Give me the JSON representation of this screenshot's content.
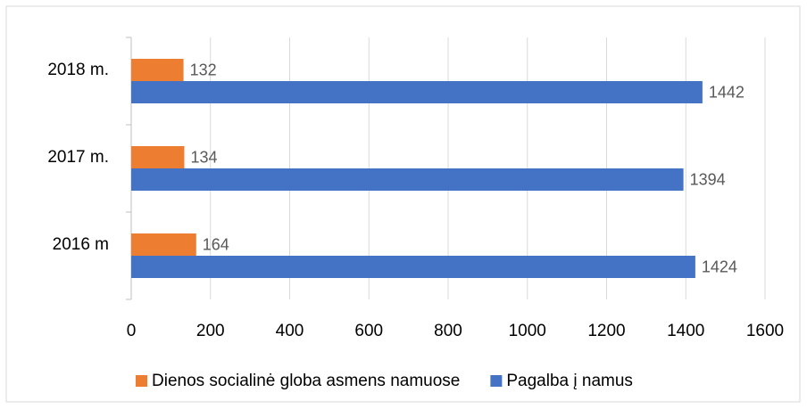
{
  "chart_data": {
    "type": "hbar",
    "categories": [
      "2016 m",
      "2017 m.",
      "2018 m."
    ],
    "series": [
      {
        "name": "Dienos socialinė globa asmens namuose",
        "color": "#ed7d31",
        "values": [
          164,
          134,
          132
        ]
      },
      {
        "name": "Pagalba į namus",
        "color": "#4472c4",
        "values": [
          1424,
          1394,
          1442
        ]
      }
    ],
    "xlim": [
      0,
      1600
    ],
    "xticks": [
      0,
      200,
      400,
      600,
      800,
      1000,
      1200,
      1400,
      1600
    ],
    "grid": true,
    "legend": "bottom"
  }
}
